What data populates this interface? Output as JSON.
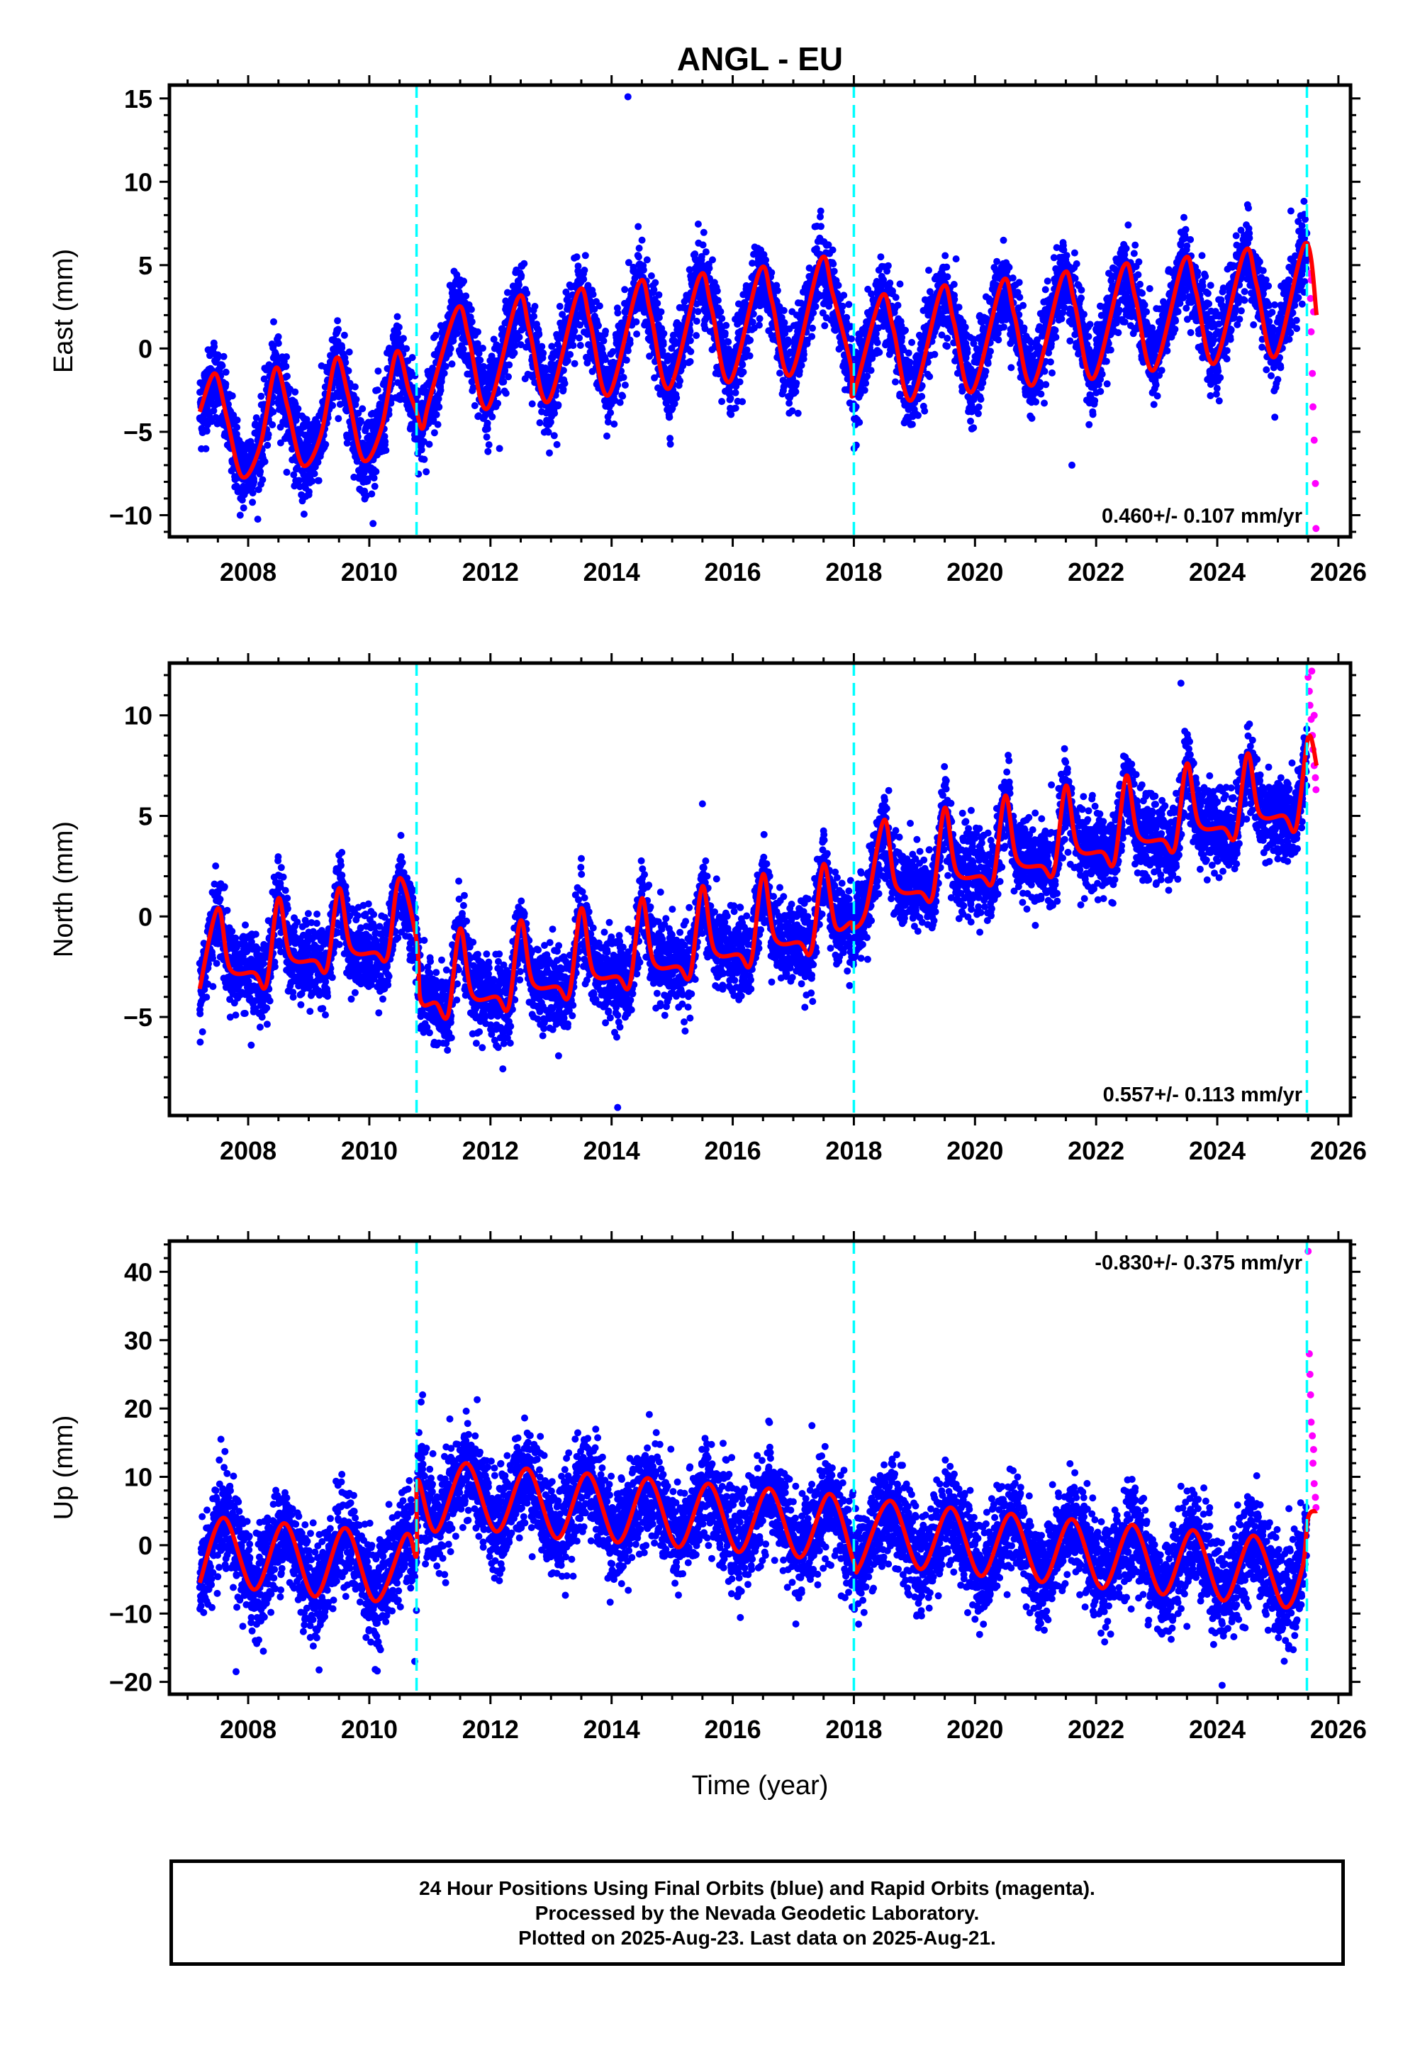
{
  "chart_data": {
    "type": "scatter",
    "title": "ANGL - EU",
    "xlabel": "Time (year)",
    "xlim": [
      2006.7,
      2026.2
    ],
    "xticks": [
      2008,
      2010,
      2012,
      2014,
      2016,
      2018,
      2020,
      2022,
      2024,
      2026
    ],
    "vertical_dashed_lines": [
      2010.78,
      2018.0,
      2025.48
    ],
    "final_orbit_end": 2025.48,
    "last_epoch": 2025.64,
    "series_colors": {
      "final": "#0000ff",
      "rapid": "#ff00ff",
      "model": "#ff0000",
      "breaks": "#00ffff"
    },
    "panels": [
      {
        "id": "east",
        "ylabel": "East (mm)",
        "ylim": [
          -11.3,
          15.8
        ],
        "yticks": [
          -10,
          -5,
          0,
          5,
          10,
          15
        ],
        "ytick_labels": [
          "−10",
          "−5",
          "0",
          "5",
          "10",
          "15"
        ],
        "rate_label": "0.460+/- 0.107 mm/yr",
        "rate_position": "bottom-right",
        "model_points": [
          [
            2007.2,
            -3.8
          ],
          [
            2007.45,
            -1.5
          ],
          [
            2007.65,
            -4.2
          ],
          [
            2007.9,
            -7.7
          ],
          [
            2008.2,
            -5.8
          ],
          [
            2008.45,
            -1.2
          ],
          [
            2008.65,
            -3.5
          ],
          [
            2008.9,
            -7.0
          ],
          [
            2009.2,
            -5.2
          ],
          [
            2009.45,
            -0.6
          ],
          [
            2009.65,
            -2.8
          ],
          [
            2009.9,
            -6.7
          ],
          [
            2010.2,
            -4.8
          ],
          [
            2010.45,
            -0.2
          ],
          [
            2010.65,
            -2.5
          ],
          [
            2010.78,
            -3.8
          ],
          [
            2010.88,
            -4.8
          ],
          [
            2011.0,
            -3.0
          ],
          [
            2011.45,
            2.4
          ],
          [
            2011.65,
            0.5
          ],
          [
            2011.95,
            -3.6
          ],
          [
            2012.45,
            3.0
          ],
          [
            2012.65,
            1.0
          ],
          [
            2012.95,
            -3.2
          ],
          [
            2013.45,
            3.4
          ],
          [
            2013.65,
            1.5
          ],
          [
            2013.95,
            -2.8
          ],
          [
            2014.45,
            3.9
          ],
          [
            2014.65,
            2.0
          ],
          [
            2014.95,
            -2.4
          ],
          [
            2015.45,
            4.3
          ],
          [
            2015.65,
            2.4
          ],
          [
            2015.95,
            -2.0
          ],
          [
            2016.45,
            4.7
          ],
          [
            2016.65,
            2.8
          ],
          [
            2016.95,
            -1.6
          ],
          [
            2017.45,
            5.3
          ],
          [
            2017.65,
            3.3
          ],
          [
            2017.95,
            -1.0
          ],
          [
            2018.0,
            -2.7
          ],
          [
            2018.45,
            3.1
          ],
          [
            2018.65,
            1.2
          ],
          [
            2018.95,
            -3.1
          ],
          [
            2019.45,
            3.6
          ],
          [
            2019.65,
            1.6
          ],
          [
            2019.95,
            -2.6
          ],
          [
            2020.45,
            4.0
          ],
          [
            2020.65,
            2.0
          ],
          [
            2020.95,
            -2.2
          ],
          [
            2021.45,
            4.4
          ],
          [
            2021.65,
            2.6
          ],
          [
            2021.95,
            -1.8
          ],
          [
            2022.45,
            4.9
          ],
          [
            2022.65,
            3.0
          ],
          [
            2022.95,
            -1.3
          ],
          [
            2023.45,
            5.3
          ],
          [
            2023.65,
            3.4
          ],
          [
            2023.95,
            -0.9
          ],
          [
            2024.45,
            5.8
          ],
          [
            2024.65,
            3.8
          ],
          [
            2024.95,
            -0.5
          ],
          [
            2025.45,
            6.3
          ],
          [
            2025.64,
            2.0
          ]
        ],
        "rapid_points": [
          [
            2025.52,
            4.5
          ],
          [
            2025.54,
            3.0
          ],
          [
            2025.55,
            1.0
          ],
          [
            2025.57,
            -1.5
          ],
          [
            2025.58,
            -3.5
          ],
          [
            2025.6,
            -5.5
          ],
          [
            2025.62,
            -8.1
          ],
          [
            2025.63,
            -10.8
          ],
          [
            2025.55,
            4.1
          ],
          [
            2025.59,
            2.2
          ]
        ],
        "noise": 1.2,
        "outliers": [
          [
            2014.27,
            15.1
          ],
          [
            2010.8,
            -6.3
          ],
          [
            2012.15,
            -6.0
          ],
          [
            2021.6,
            -7.0
          ]
        ]
      },
      {
        "id": "north",
        "ylabel": "North (mm)",
        "ylim": [
          -9.9,
          12.6
        ],
        "yticks": [
          -5,
          0,
          5,
          10
        ],
        "ytick_labels": [
          "−5",
          "0",
          "5",
          "10"
        ],
        "rate_label": "0.557+/- 0.113 mm/yr",
        "rate_position": "bottom-right",
        "model_points": [
          [
            2007.2,
            -3.6
          ],
          [
            2007.5,
            0.4
          ],
          [
            2007.7,
            -2.6
          ],
          [
            2008.1,
            -2.8
          ],
          [
            2008.3,
            -3.4
          ],
          [
            2008.5,
            0.9
          ],
          [
            2008.7,
            -2.0
          ],
          [
            2009.1,
            -2.2
          ],
          [
            2009.3,
            -2.6
          ],
          [
            2009.5,
            1.4
          ],
          [
            2009.7,
            -1.6
          ],
          [
            2010.1,
            -1.8
          ],
          [
            2010.3,
            -2.0
          ],
          [
            2010.5,
            1.9
          ],
          [
            2010.78,
            -1.2
          ],
          [
            2010.85,
            -4.2
          ],
          [
            2011.1,
            -4.3
          ],
          [
            2011.3,
            -4.9
          ],
          [
            2011.5,
            -0.6
          ],
          [
            2011.7,
            -3.9
          ],
          [
            2012.1,
            -4.0
          ],
          [
            2012.3,
            -4.5
          ],
          [
            2012.5,
            -0.2
          ],
          [
            2012.7,
            -3.3
          ],
          [
            2013.1,
            -3.5
          ],
          [
            2013.3,
            -3.9
          ],
          [
            2013.5,
            0.4
          ],
          [
            2013.7,
            -2.8
          ],
          [
            2014.1,
            -3.0
          ],
          [
            2014.3,
            -3.4
          ],
          [
            2014.5,
            0.9
          ],
          [
            2014.7,
            -2.3
          ],
          [
            2015.1,
            -2.5
          ],
          [
            2015.3,
            -2.9
          ],
          [
            2015.5,
            1.5
          ],
          [
            2015.7,
            -1.7
          ],
          [
            2016.1,
            -1.9
          ],
          [
            2016.3,
            -2.3
          ],
          [
            2016.5,
            2.1
          ],
          [
            2016.7,
            -1.1
          ],
          [
            2017.1,
            -1.3
          ],
          [
            2017.3,
            -1.7
          ],
          [
            2017.5,
            2.6
          ],
          [
            2017.7,
            -0.5
          ],
          [
            2017.95,
            -0.3
          ],
          [
            2018.0,
            -0.6
          ],
          [
            2018.2,
            0.3
          ],
          [
            2018.5,
            4.8
          ],
          [
            2018.7,
            1.5
          ],
          [
            2019.1,
            1.2
          ],
          [
            2019.3,
            1.0
          ],
          [
            2019.5,
            5.4
          ],
          [
            2019.7,
            2.2
          ],
          [
            2020.1,
            2.0
          ],
          [
            2020.3,
            1.8
          ],
          [
            2020.5,
            6.0
          ],
          [
            2020.7,
            2.8
          ],
          [
            2021.1,
            2.5
          ],
          [
            2021.3,
            2.2
          ],
          [
            2021.5,
            6.5
          ],
          [
            2021.7,
            3.4
          ],
          [
            2022.1,
            3.2
          ],
          [
            2022.3,
            2.7
          ],
          [
            2022.5,
            7.0
          ],
          [
            2022.7,
            4.0
          ],
          [
            2023.1,
            3.8
          ],
          [
            2023.3,
            3.4
          ],
          [
            2023.5,
            7.6
          ],
          [
            2023.7,
            4.6
          ],
          [
            2024.1,
            4.4
          ],
          [
            2024.3,
            4.0
          ],
          [
            2024.5,
            8.1
          ],
          [
            2024.7,
            5.1
          ],
          [
            2025.1,
            5.0
          ],
          [
            2025.3,
            4.4
          ],
          [
            2025.5,
            8.9
          ],
          [
            2025.64,
            7.5
          ]
        ],
        "rapid_points": [
          [
            2025.5,
            11.9
          ],
          [
            2025.52,
            11.2
          ],
          [
            2025.53,
            10.5
          ],
          [
            2025.55,
            9.8
          ],
          [
            2025.57,
            9.0
          ],
          [
            2025.58,
            8.3
          ],
          [
            2025.6,
            7.5
          ],
          [
            2025.62,
            6.9
          ],
          [
            2025.63,
            6.3
          ],
          [
            2025.56,
            12.2
          ],
          [
            2025.6,
            10.0
          ]
        ],
        "noise": 1.0,
        "outliers": [
          [
            2015.5,
            5.6
          ],
          [
            2014.1,
            -9.5
          ],
          [
            2023.4,
            11.6
          ],
          [
            2008.05,
            -6.4
          ]
        ]
      },
      {
        "id": "up",
        "ylabel": "Up (mm)",
        "ylim": [
          -21.8,
          44.5
        ],
        "yticks": [
          -20,
          -10,
          0,
          10,
          20,
          30,
          40
        ],
        "ytick_labels": [
          "−20",
          "−10",
          "0",
          "10",
          "20",
          "30",
          "40"
        ],
        "rate_label": "-0.830+/- 0.375 mm/yr",
        "rate_position": "top-right",
        "model_points": [
          [
            2007.2,
            -5.5
          ],
          [
            2007.6,
            4.0
          ],
          [
            2008.1,
            -6.5
          ],
          [
            2008.6,
            3.2
          ],
          [
            2009.1,
            -7.5
          ],
          [
            2009.6,
            2.5
          ],
          [
            2010.1,
            -8.2
          ],
          [
            2010.6,
            1.5
          ],
          [
            2010.78,
            -1.5
          ],
          [
            2010.8,
            9.5
          ],
          [
            2011.1,
            2.0
          ],
          [
            2011.6,
            12.0
          ],
          [
            2012.1,
            2.0
          ],
          [
            2012.6,
            11.2
          ],
          [
            2013.1,
            1.0
          ],
          [
            2013.6,
            10.5
          ],
          [
            2014.1,
            0.4
          ],
          [
            2014.6,
            9.8
          ],
          [
            2015.1,
            -0.3
          ],
          [
            2015.6,
            9.0
          ],
          [
            2016.1,
            -1.0
          ],
          [
            2016.6,
            8.3
          ],
          [
            2017.1,
            -1.8
          ],
          [
            2017.6,
            7.5
          ],
          [
            2018.0,
            -2.5
          ],
          [
            2018.1,
            -3.0
          ],
          [
            2018.6,
            6.5
          ],
          [
            2019.1,
            -3.5
          ],
          [
            2019.6,
            5.5
          ],
          [
            2020.1,
            -4.5
          ],
          [
            2020.6,
            4.6
          ],
          [
            2021.1,
            -5.4
          ],
          [
            2021.6,
            3.8
          ],
          [
            2022.1,
            -6.3
          ],
          [
            2022.6,
            3.0
          ],
          [
            2023.1,
            -7.2
          ],
          [
            2023.6,
            2.2
          ],
          [
            2024.1,
            -8.1
          ],
          [
            2024.6,
            1.4
          ],
          [
            2025.1,
            -9.0
          ],
          [
            2025.4,
            -3.5
          ],
          [
            2025.5,
            4.0
          ],
          [
            2025.64,
            5.0
          ]
        ],
        "rapid_points": [
          [
            2025.5,
            43.0
          ],
          [
            2025.52,
            28.0
          ],
          [
            2025.53,
            25.0
          ],
          [
            2025.55,
            18.0
          ],
          [
            2025.57,
            16.0
          ],
          [
            2025.58,
            12.0
          ],
          [
            2025.6,
            9.0
          ],
          [
            2025.62,
            7.0
          ],
          [
            2025.63,
            5.5
          ],
          [
            2025.54,
            22.0
          ],
          [
            2025.59,
            14.0
          ]
        ],
        "noise": 3.6,
        "outliers": [
          [
            2007.55,
            15.5
          ],
          [
            2010.88,
            22.0
          ],
          [
            2007.8,
            -18.5
          ],
          [
            2010.75,
            -17.0
          ],
          [
            2024.08,
            -20.5
          ]
        ]
      }
    ]
  },
  "caption": {
    "line1": "24 Hour Positions Using Final Orbits (blue) and Rapid Orbits (magenta).",
    "line2": "Processed by the Nevada Geodetic Laboratory.",
    "line3": "Plotted on 2025-Aug-23. Last data on 2025-Aug-21."
  }
}
